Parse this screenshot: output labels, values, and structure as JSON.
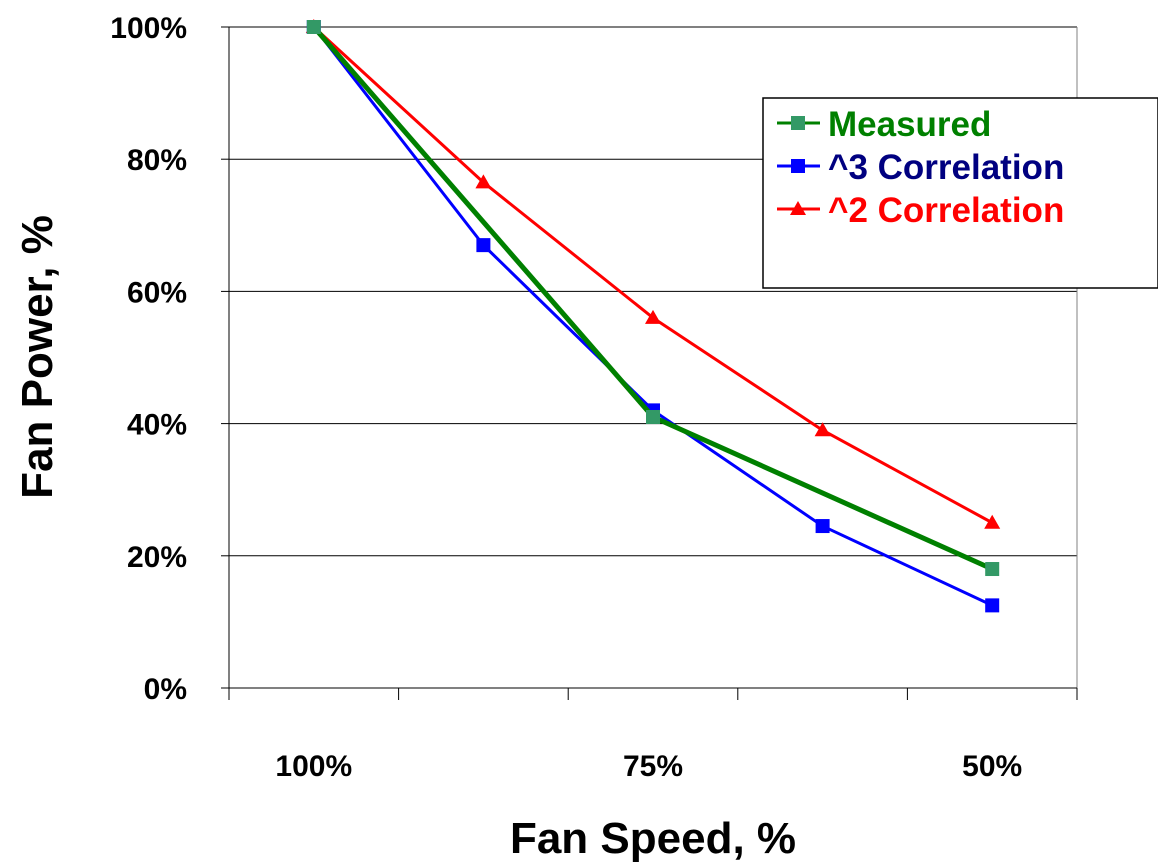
{
  "chart_data": {
    "type": "line",
    "title": "",
    "xlabel": "Fan Speed, %",
    "ylabel": "Fan Power, %",
    "categories": [
      "100%",
      "",
      "75%",
      "",
      "50%"
    ],
    "x_positions": [
      0.5,
      1.5,
      2.5,
      3.5,
      4.5
    ],
    "xlim": [
      0,
      5
    ],
    "ylim": [
      0,
      100
    ],
    "yticks": [
      0,
      20,
      40,
      60,
      80,
      100
    ],
    "ytick_labels": [
      "0%",
      "20%",
      "40%",
      "60%",
      "80%",
      "100%"
    ],
    "grid": "horizontal",
    "legend_position": "top-right",
    "series": [
      {
        "name": "Measured",
        "color": "#008000",
        "marker_color": "#339966",
        "marker": "square",
        "points": [
          [
            0.5,
            100
          ],
          [
            2.5,
            41
          ],
          [
            4.5,
            18
          ]
        ]
      },
      {
        "name": "^3 Correlation",
        "color": "#0000ff",
        "marker_color": "#0000ff",
        "marker": "square",
        "points": [
          [
            0.5,
            100
          ],
          [
            1.5,
            67
          ],
          [
            2.5,
            42
          ],
          [
            3.5,
            24.5
          ],
          [
            4.5,
            12.5
          ]
        ]
      },
      {
        "name": "^2 Correlation",
        "color": "#ff0000",
        "marker_color": "#ff0000",
        "marker": "triangle",
        "points": [
          [
            0.5,
            100
          ],
          [
            1.5,
            76.5
          ],
          [
            2.5,
            56
          ],
          [
            3.5,
            39
          ],
          [
            4.5,
            25
          ]
        ]
      }
    ],
    "legend_text_colors": [
      "#008000",
      "#000080",
      "#ff0000"
    ]
  }
}
